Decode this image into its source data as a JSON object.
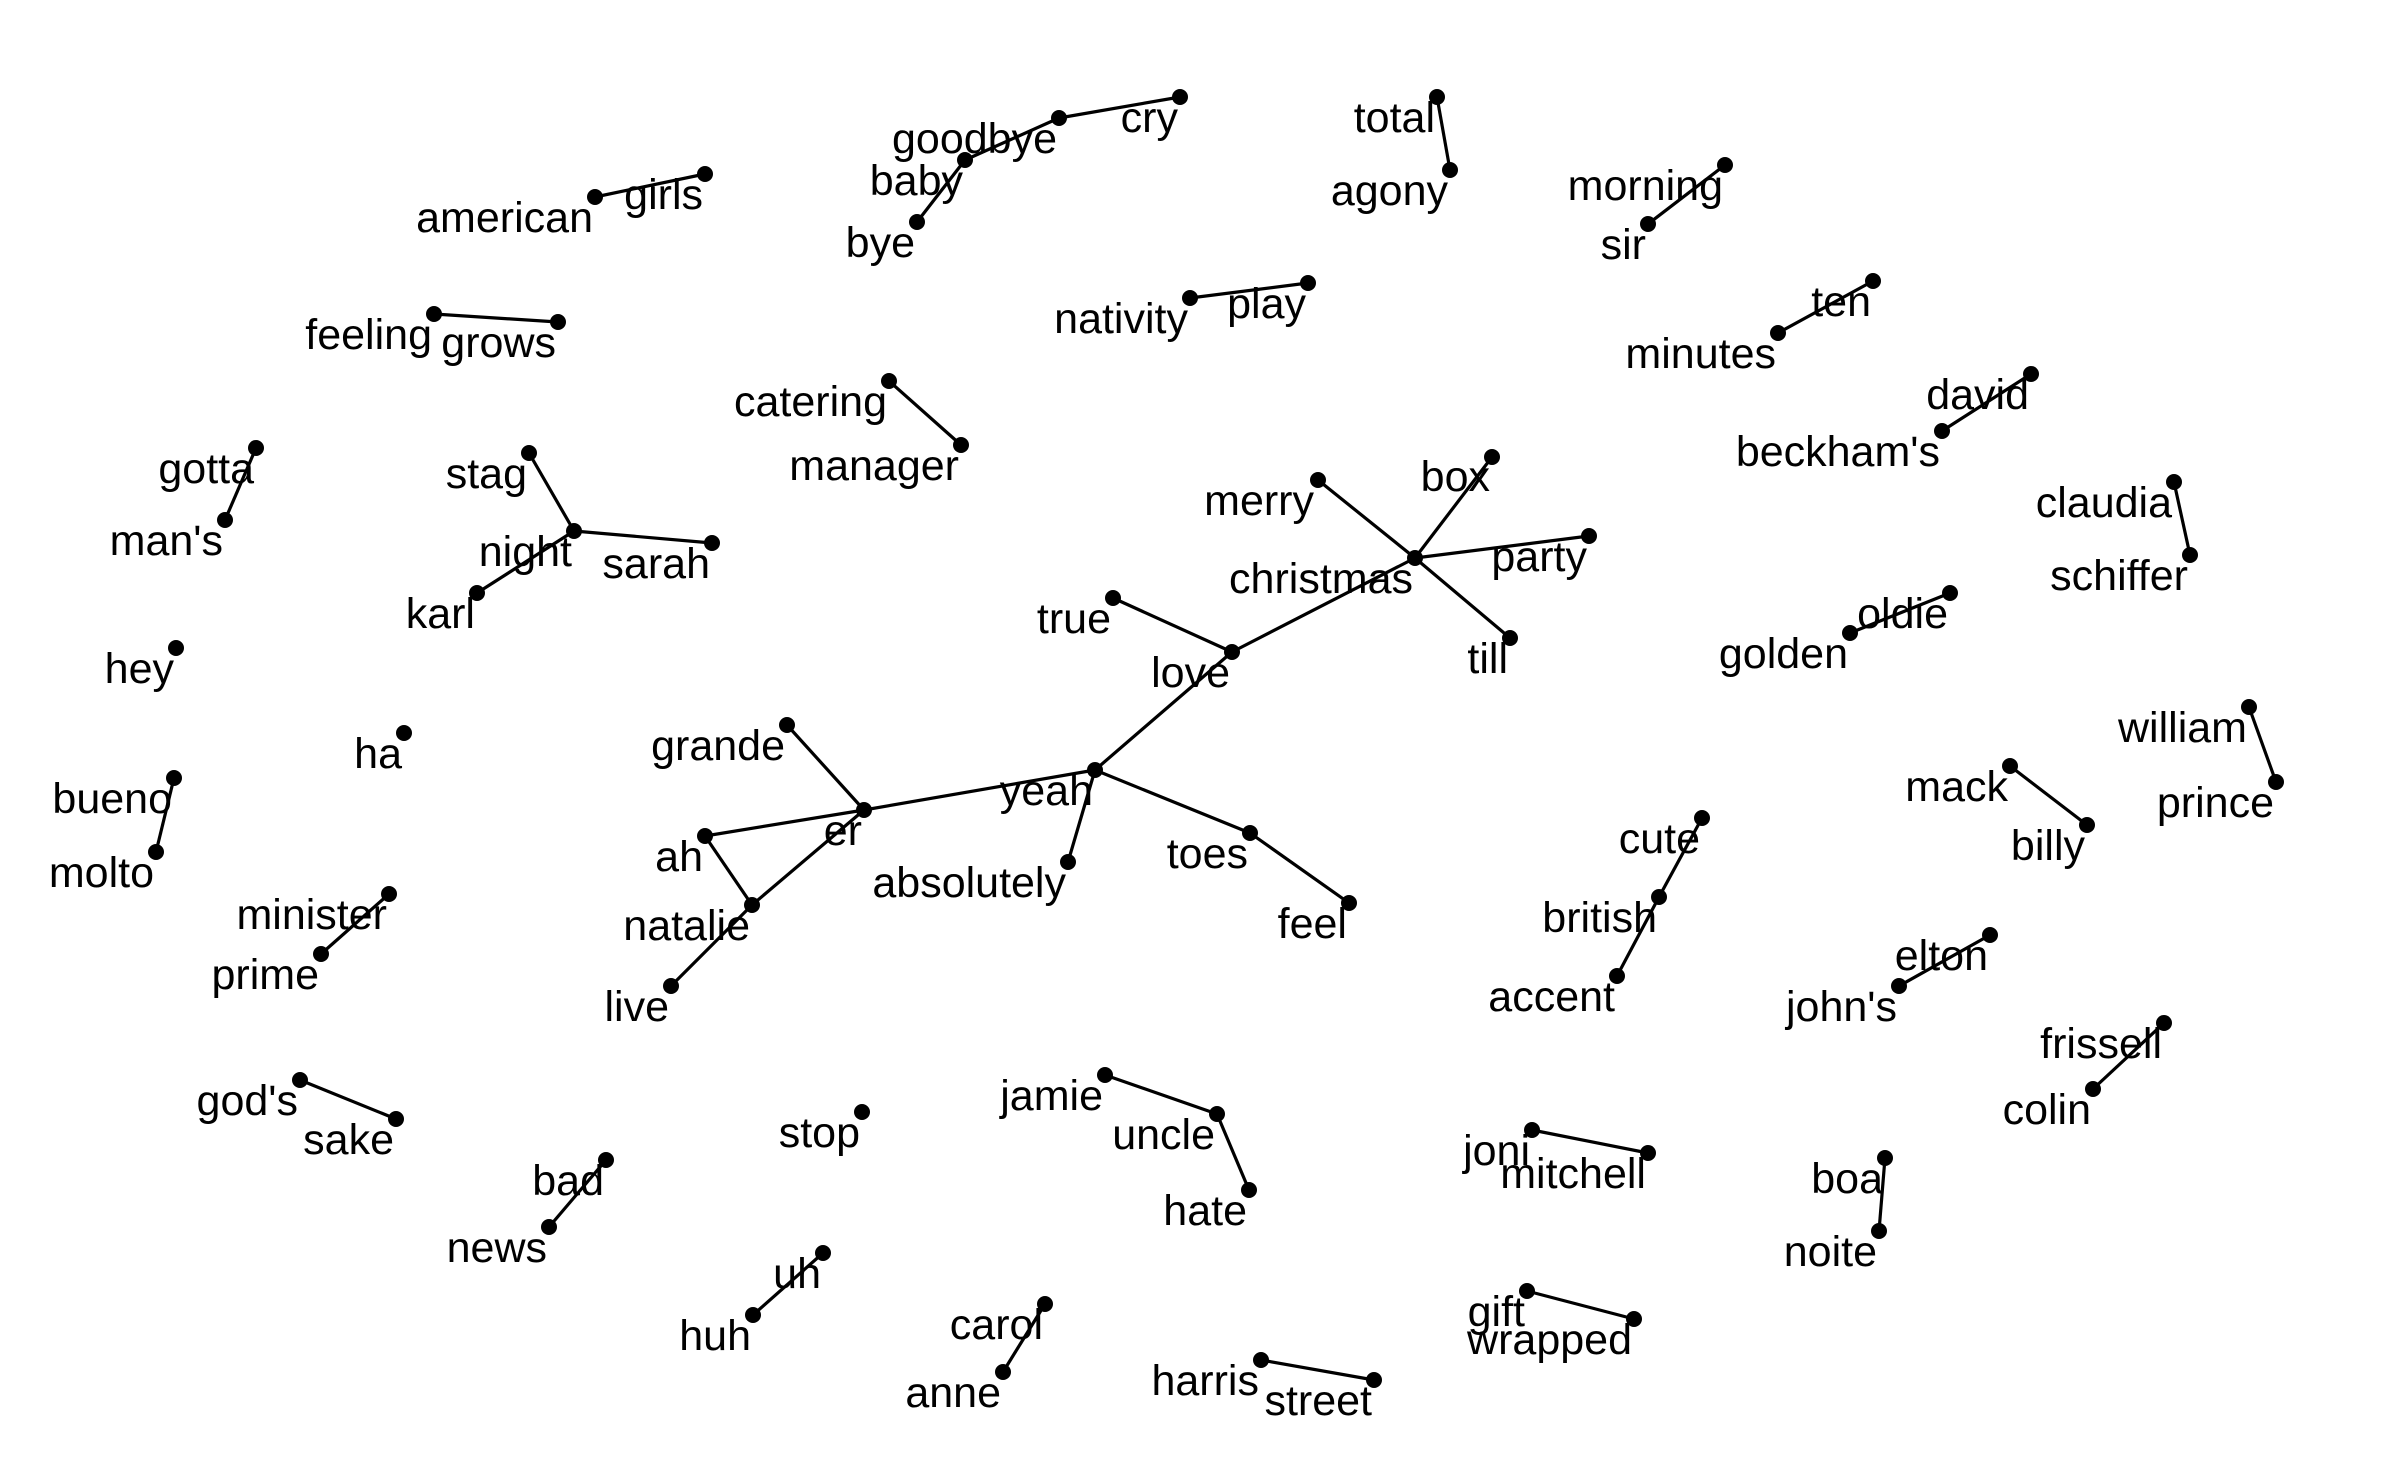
{
  "nodes": [
    {
      "id": "christmas",
      "label": "christmas"
    },
    {
      "id": "merry",
      "label": "merry"
    },
    {
      "id": "box",
      "label": "box"
    },
    {
      "id": "party",
      "label": "party"
    },
    {
      "id": "till",
      "label": "till"
    },
    {
      "id": "love",
      "label": "love"
    },
    {
      "id": "true",
      "label": "true"
    },
    {
      "id": "yeah",
      "label": "yeah"
    },
    {
      "id": "absolutely",
      "label": "absolutely"
    },
    {
      "id": "toes",
      "label": "toes"
    },
    {
      "id": "feel",
      "label": "feel"
    },
    {
      "id": "er",
      "label": "er"
    },
    {
      "id": "grande",
      "label": "grande"
    },
    {
      "id": "ah",
      "label": "ah"
    },
    {
      "id": "natalie",
      "label": "natalie"
    },
    {
      "id": "live",
      "label": "live"
    },
    {
      "id": "american",
      "label": "american"
    },
    {
      "id": "girls",
      "label": "girls"
    },
    {
      "id": "goodbye",
      "label": "goodbye"
    },
    {
      "id": "cry",
      "label": "cry"
    },
    {
      "id": "baby",
      "label": "baby"
    },
    {
      "id": "bye",
      "label": "bye"
    },
    {
      "id": "total",
      "label": "total"
    },
    {
      "id": "agony",
      "label": "agony"
    },
    {
      "id": "morning",
      "label": "morning"
    },
    {
      "id": "sir",
      "label": "sir"
    },
    {
      "id": "feeling",
      "label": "feeling"
    },
    {
      "id": "grows",
      "label": "grows"
    },
    {
      "id": "nativity",
      "label": "nativity"
    },
    {
      "id": "play",
      "label": "play"
    },
    {
      "id": "ten",
      "label": "ten"
    },
    {
      "id": "minutes",
      "label": "minutes"
    },
    {
      "id": "catering",
      "label": "catering"
    },
    {
      "id": "manager",
      "label": "manager"
    },
    {
      "id": "david",
      "label": "david"
    },
    {
      "id": "beckhams",
      "label": "beckham's"
    },
    {
      "id": "gotta",
      "label": "gotta"
    },
    {
      "id": "mans",
      "label": "man's"
    },
    {
      "id": "stag",
      "label": "stag"
    },
    {
      "id": "night",
      "label": "night"
    },
    {
      "id": "sarah",
      "label": "sarah"
    },
    {
      "id": "karl",
      "label": "karl"
    },
    {
      "id": "claudia",
      "label": "claudia"
    },
    {
      "id": "schiffer",
      "label": "schiffer"
    },
    {
      "id": "oldie",
      "label": "oldie"
    },
    {
      "id": "golden",
      "label": "golden"
    },
    {
      "id": "hey",
      "label": "hey"
    },
    {
      "id": "ha",
      "label": "ha"
    },
    {
      "id": "william",
      "label": "william"
    },
    {
      "id": "prince",
      "label": "prince"
    },
    {
      "id": "bueno",
      "label": "bueno"
    },
    {
      "id": "molto",
      "label": "molto"
    },
    {
      "id": "mack",
      "label": "mack"
    },
    {
      "id": "billy",
      "label": "billy"
    },
    {
      "id": "cute",
      "label": "cute"
    },
    {
      "id": "british",
      "label": "british"
    },
    {
      "id": "accent",
      "label": "accent"
    },
    {
      "id": "minister",
      "label": "minister"
    },
    {
      "id": "prime",
      "label": "prime"
    },
    {
      "id": "elton",
      "label": "elton"
    },
    {
      "id": "johns",
      "label": "john's"
    },
    {
      "id": "frissell",
      "label": "frissell"
    },
    {
      "id": "colin",
      "label": "colin"
    },
    {
      "id": "gods",
      "label": "god's"
    },
    {
      "id": "sake",
      "label": "sake"
    },
    {
      "id": "stop",
      "label": "stop"
    },
    {
      "id": "jamie",
      "label": "jamie"
    },
    {
      "id": "uncle",
      "label": "uncle"
    },
    {
      "id": "hate",
      "label": "hate"
    },
    {
      "id": "joni",
      "label": "joni"
    },
    {
      "id": "mitchell",
      "label": "mitchell"
    },
    {
      "id": "bad",
      "label": "bad"
    },
    {
      "id": "news",
      "label": "news"
    },
    {
      "id": "boa",
      "label": "boa"
    },
    {
      "id": "noite",
      "label": "noite"
    },
    {
      "id": "uh",
      "label": "uh"
    },
    {
      "id": "huh",
      "label": "huh"
    },
    {
      "id": "carol",
      "label": "carol"
    },
    {
      "id": "anne",
      "label": "anne"
    },
    {
      "id": "gift",
      "label": "gift"
    },
    {
      "id": "wrapped",
      "label": "wrapped"
    },
    {
      "id": "harris",
      "label": "harris"
    },
    {
      "id": "street",
      "label": "street"
    }
  ],
  "edges": [
    [
      "christmas",
      "merry"
    ],
    [
      "christmas",
      "box"
    ],
    [
      "christmas",
      "party"
    ],
    [
      "christmas",
      "till"
    ],
    [
      "christmas",
      "love"
    ],
    [
      "love",
      "true"
    ],
    [
      "love",
      "yeah"
    ],
    [
      "yeah",
      "absolutely"
    ],
    [
      "yeah",
      "toes"
    ],
    [
      "toes",
      "feel"
    ],
    [
      "yeah",
      "er"
    ],
    [
      "er",
      "grande"
    ],
    [
      "er",
      "ah"
    ],
    [
      "er",
      "natalie"
    ],
    [
      "ah",
      "natalie"
    ],
    [
      "natalie",
      "live"
    ],
    [
      "american",
      "girls"
    ],
    [
      "goodbye",
      "cry"
    ],
    [
      "goodbye",
      "baby"
    ],
    [
      "baby",
      "bye"
    ],
    [
      "total",
      "agony"
    ],
    [
      "morning",
      "sir"
    ],
    [
      "feeling",
      "grows"
    ],
    [
      "nativity",
      "play"
    ],
    [
      "ten",
      "minutes"
    ],
    [
      "catering",
      "manager"
    ],
    [
      "david",
      "beckhams"
    ],
    [
      "gotta",
      "mans"
    ],
    [
      "stag",
      "night"
    ],
    [
      "night",
      "sarah"
    ],
    [
      "night",
      "karl"
    ],
    [
      "claudia",
      "schiffer"
    ],
    [
      "oldie",
      "golden"
    ],
    [
      "william",
      "prince"
    ],
    [
      "bueno",
      "molto"
    ],
    [
      "mack",
      "billy"
    ],
    [
      "cute",
      "british"
    ],
    [
      "british",
      "accent"
    ],
    [
      "minister",
      "prime"
    ],
    [
      "elton",
      "johns"
    ],
    [
      "frissell",
      "colin"
    ],
    [
      "gods",
      "sake"
    ],
    [
      "jamie",
      "uncle"
    ],
    [
      "uncle",
      "hate"
    ],
    [
      "joni",
      "mitchell"
    ],
    [
      "bad",
      "news"
    ],
    [
      "boa",
      "noite"
    ],
    [
      "uh",
      "huh"
    ],
    [
      "carol",
      "anne"
    ],
    [
      "gift",
      "wrapped"
    ],
    [
      "harris",
      "street"
    ]
  ]
}
